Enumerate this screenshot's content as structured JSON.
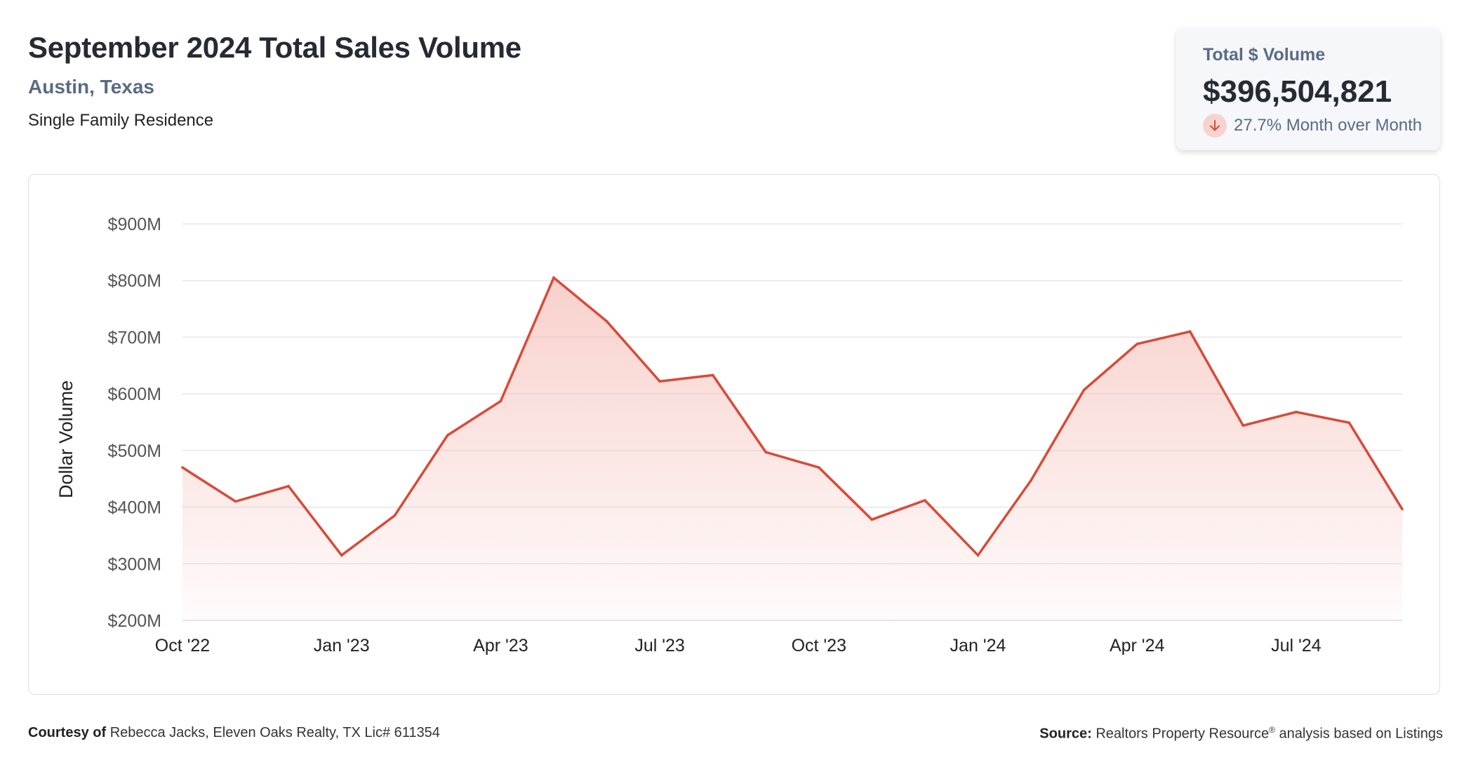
{
  "header": {
    "title": "September 2024 Total Sales Volume",
    "location": "Austin, Texas",
    "property_type": "Single Family Residence"
  },
  "kpi": {
    "label": "Total $ Volume",
    "value": "$396,504,821",
    "change": "27.7% Month over Month",
    "direction": "down",
    "arrow_icon": "arrow-down-icon"
  },
  "colors": {
    "line": "#d94a38",
    "fill": "#f4b8b0",
    "grid": "#e3e6eb",
    "kpi_label": "#5a6b82",
    "arrow_bg": "#f8d3cd"
  },
  "chart_data": {
    "type": "area",
    "ylabel": "Dollar Volume",
    "ylim": [
      200,
      900
    ],
    "y_ticks": [
      200,
      300,
      400,
      500,
      600,
      700,
      800,
      900
    ],
    "y_tick_labels": [
      "$200M",
      "$300M",
      "$400M",
      "$500M",
      "$600M",
      "$700M",
      "$800M",
      "$900M"
    ],
    "x": [
      "2022-10",
      "2022-11",
      "2022-12",
      "2023-01",
      "2023-02",
      "2023-03",
      "2023-04",
      "2023-05",
      "2023-06",
      "2023-07",
      "2023-08",
      "2023-09",
      "2023-10",
      "2023-11",
      "2023-12",
      "2024-01",
      "2024-02",
      "2024-03",
      "2024-04",
      "2024-05",
      "2024-06",
      "2024-07",
      "2024-08",
      "2024-09"
    ],
    "x_tick_labels": [
      "Oct '22",
      "Jan '23",
      "Apr '23",
      "Jul '23",
      "Oct '23",
      "Jan '24",
      "Apr '24",
      "Jul '24"
    ],
    "x_tick_index": [
      0,
      3,
      6,
      9,
      12,
      15,
      18,
      21
    ],
    "values": [
      470,
      410,
      437,
      315,
      385,
      527,
      587,
      805,
      728,
      622,
      633,
      497,
      470,
      378,
      412,
      315,
      447,
      607,
      688,
      710,
      544,
      568,
      549,
      396.5
    ],
    "grid": true
  },
  "footer": {
    "courtesy_label": "Courtesy of",
    "courtesy_text": "Rebecca Jacks, Eleven Oaks Realty, TX Lic# 611354",
    "source_label": "Source:",
    "source_text": "Realtors Property Resource",
    "source_mark": "®",
    "source_suffix": "analysis based on Listings"
  }
}
